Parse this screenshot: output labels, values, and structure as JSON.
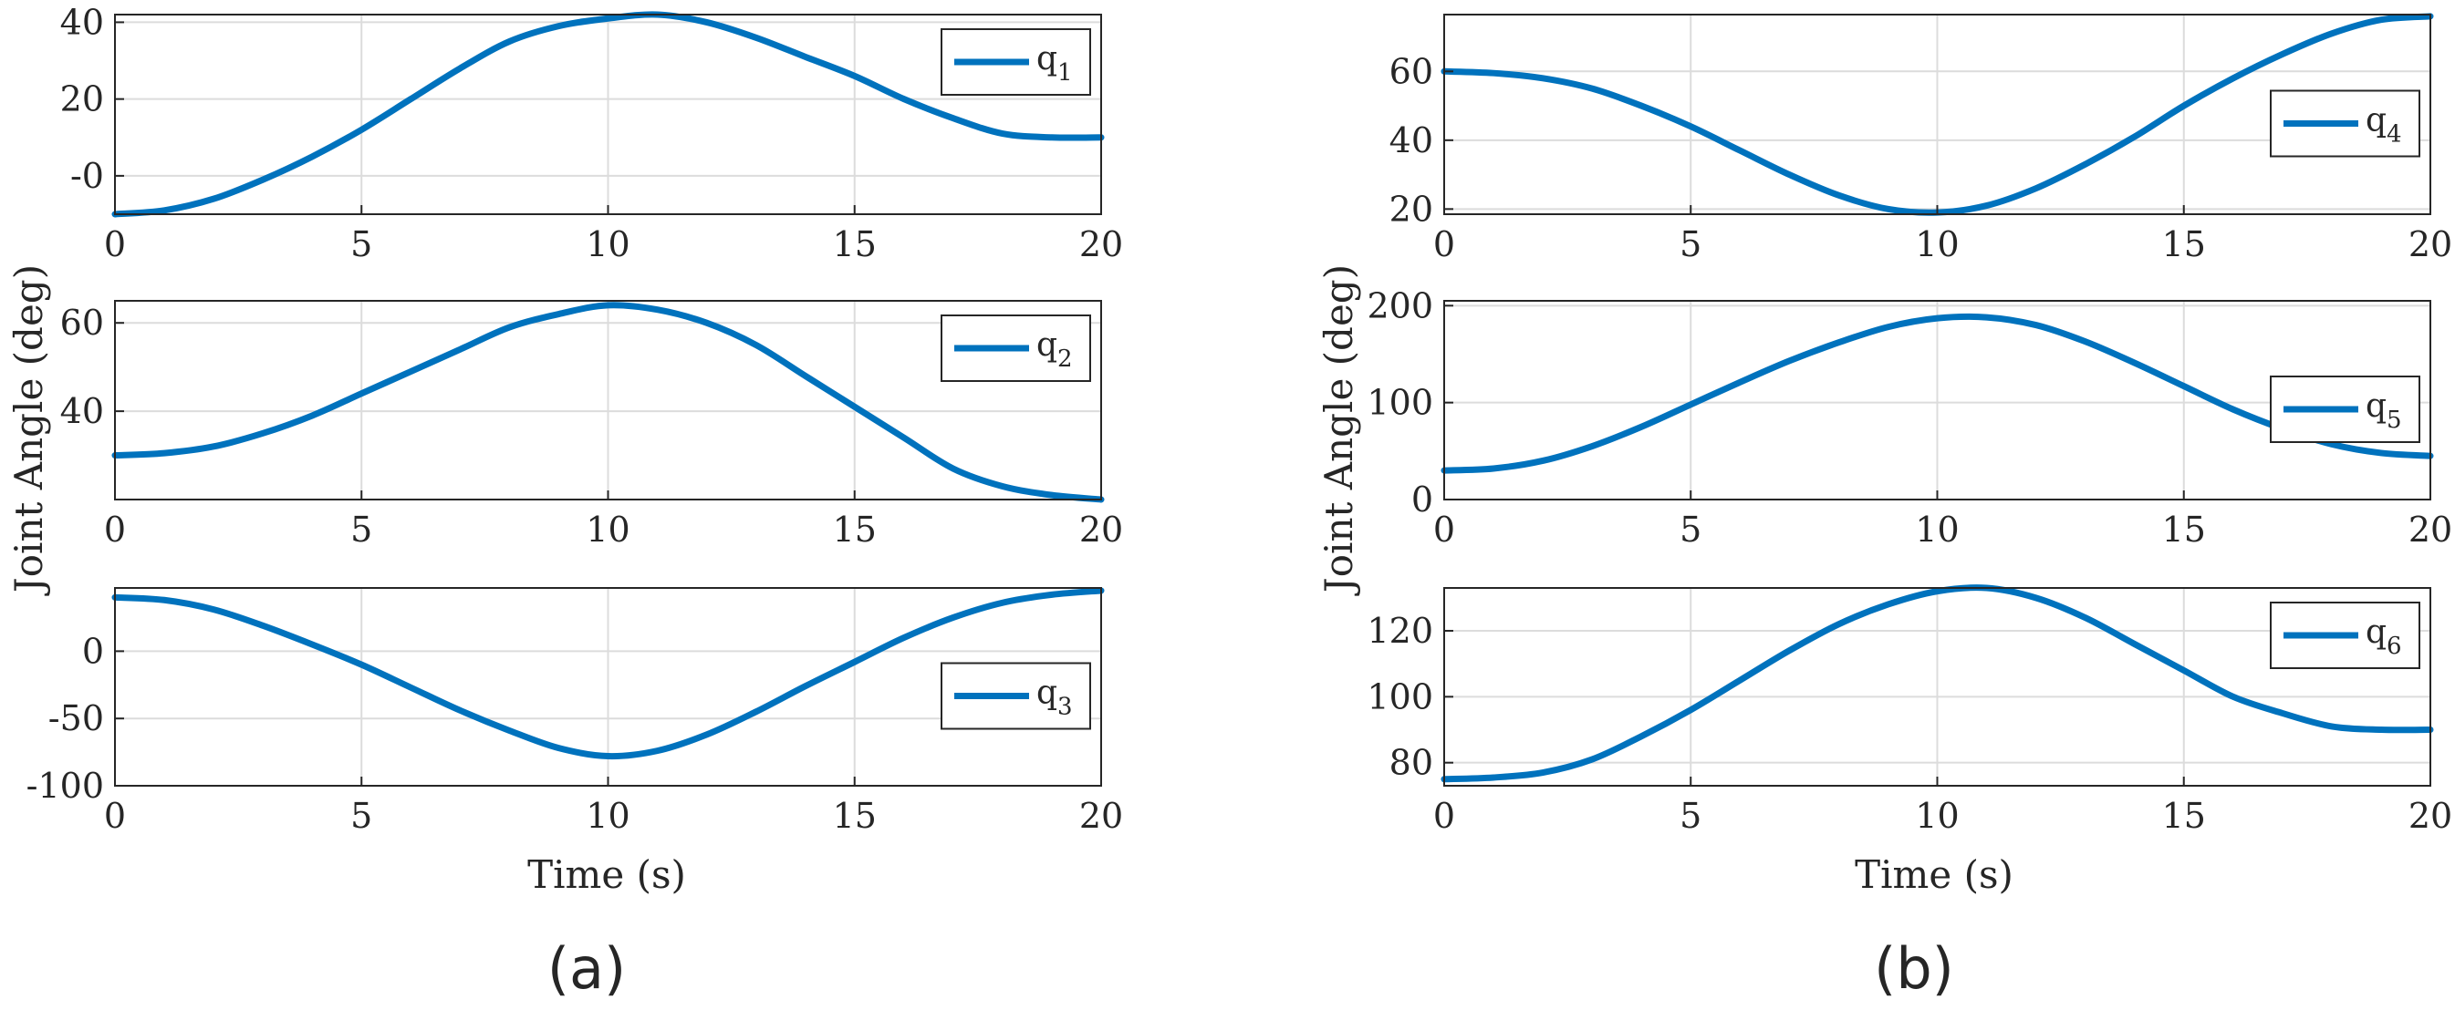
{
  "panels": [
    {
      "label": "(a)",
      "ylabel": "Joint Angle (deg)",
      "xlabel": "Time (s)"
    },
    {
      "label": "(b)",
      "ylabel": "Joint Angle (deg)",
      "xlabel": "Time (s)"
    }
  ],
  "chart_data": [
    {
      "type": "line",
      "panel": "a",
      "series": [
        {
          "name": "q1",
          "legend_base": "q",
          "legend_sub": "1",
          "color": "#0072BD",
          "x": [
            0,
            1,
            2,
            3,
            4,
            5,
            6,
            7,
            8,
            9,
            10,
            11,
            12,
            13,
            14,
            15,
            16,
            17,
            18,
            19,
            20
          ],
          "y": [
            -10,
            -9,
            -6,
            -1,
            5,
            12,
            20,
            28,
            35,
            39,
            41,
            42,
            40,
            36,
            31,
            26,
            20,
            15,
            11,
            10,
            10
          ]
        }
      ],
      "xlim": [
        0,
        20
      ],
      "ylim": [
        -10,
        42
      ],
      "xticks": [
        "0",
        "5",
        "10",
        "15",
        "20"
      ],
      "xtick_values": [
        0,
        5,
        10,
        15,
        20
      ],
      "yticks": [
        "-0",
        "20",
        "40"
      ],
      "ytick_values": [
        0,
        20,
        40
      ],
      "grid": true,
      "legend_position": "top-right"
    },
    {
      "type": "line",
      "panel": "a",
      "series": [
        {
          "name": "q2",
          "legend_base": "q",
          "legend_sub": "2",
          "color": "#0072BD",
          "x": [
            0,
            1,
            2,
            3,
            4,
            5,
            6,
            7,
            8,
            9,
            10,
            11,
            12,
            13,
            14,
            15,
            16,
            17,
            18,
            19,
            20
          ],
          "y": [
            30,
            30.5,
            32,
            35,
            39,
            44,
            49,
            54,
            59,
            62,
            64,
            63,
            60,
            55,
            48,
            41,
            34,
            27,
            23,
            21,
            20
          ]
        }
      ],
      "xlim": [
        0,
        20
      ],
      "ylim": [
        20,
        65
      ],
      "xticks": [
        "0",
        "5",
        "10",
        "15",
        "20"
      ],
      "xtick_values": [
        0,
        5,
        10,
        15,
        20
      ],
      "yticks": [
        "40",
        "60"
      ],
      "ytick_values": [
        40,
        60
      ],
      "grid": true,
      "legend_position": "top-right"
    },
    {
      "type": "line",
      "panel": "a",
      "series": [
        {
          "name": "q3",
          "legend_base": "q",
          "legend_sub": "3",
          "color": "#0072BD",
          "x": [
            0,
            1,
            2,
            3,
            4,
            5,
            6,
            7,
            8,
            9,
            10,
            11,
            12,
            13,
            14,
            15,
            16,
            17,
            18,
            19,
            20
          ],
          "y": [
            40,
            38,
            31,
            19,
            5,
            -10,
            -27,
            -44,
            -59,
            -72,
            -78,
            -74,
            -62,
            -45,
            -26,
            -8,
            10,
            25,
            36,
            42,
            45
          ]
        }
      ],
      "xlim": [
        0,
        20
      ],
      "ylim": [
        -100,
        47
      ],
      "xticks": [
        "0",
        "5",
        "10",
        "15",
        "20"
      ],
      "xtick_values": [
        0,
        5,
        10,
        15,
        20
      ],
      "yticks": [
        "-100",
        "-50",
        "0"
      ],
      "ytick_values": [
        -100,
        -50,
        0
      ],
      "grid": true,
      "legend_position": "right"
    },
    {
      "type": "line",
      "panel": "b",
      "series": [
        {
          "name": "q4",
          "legend_base": "q",
          "legend_sub": "4",
          "color": "#0072BD",
          "x": [
            0,
            1,
            2,
            3,
            4,
            5,
            6,
            7,
            8,
            9,
            10,
            11,
            12,
            13,
            14,
            15,
            16,
            17,
            18,
            19,
            20
          ],
          "y": [
            60,
            59.5,
            58,
            55,
            50,
            44,
            37,
            30,
            24,
            20,
            19,
            21,
            26,
            33,
            41,
            50,
            58,
            65,
            71,
            75,
            76
          ]
        }
      ],
      "xlim": [
        0,
        20
      ],
      "ylim": [
        18.5,
        76.5
      ],
      "xticks": [
        "0",
        "5",
        "10",
        "15",
        "20"
      ],
      "xtick_values": [
        0,
        5,
        10,
        15,
        20
      ],
      "yticks": [
        "20",
        "40",
        "60"
      ],
      "ytick_values": [
        20,
        40,
        60
      ],
      "grid": true,
      "legend_position": "right"
    },
    {
      "type": "line",
      "panel": "b",
      "series": [
        {
          "name": "q5",
          "legend_base": "q",
          "legend_sub": "5",
          "color": "#0072BD",
          "x": [
            0,
            1,
            2,
            3,
            4,
            5,
            6,
            7,
            8,
            9,
            10,
            11,
            12,
            13,
            14,
            15,
            16,
            17,
            18,
            19,
            20
          ],
          "y": [
            30,
            32,
            40,
            55,
            75,
            98,
            121,
            143,
            162,
            178,
            187,
            188,
            180,
            163,
            141,
            117,
            93,
            73,
            57,
            48,
            45
          ]
        }
      ],
      "xlim": [
        0,
        20
      ],
      "ylim": [
        0,
        205
      ],
      "xticks": [
        "0",
        "5",
        "10",
        "15",
        "20"
      ],
      "xtick_values": [
        0,
        5,
        10,
        15,
        20
      ],
      "yticks": [
        "0",
        "100",
        "200"
      ],
      "ytick_values": [
        0,
        100,
        200
      ],
      "grid": true,
      "legend_position": "right"
    },
    {
      "type": "line",
      "panel": "b",
      "series": [
        {
          "name": "q6",
          "legend_base": "q",
          "legend_sub": "6",
          "color": "#0072BD",
          "x": [
            0,
            1,
            2,
            3,
            4,
            5,
            6,
            7,
            8,
            9,
            10,
            11,
            12,
            13,
            14,
            15,
            16,
            17,
            18,
            19,
            20
          ],
          "y": [
            75,
            75.5,
            77,
            81,
            88,
            96,
            105,
            114,
            122,
            128,
            132,
            133,
            130,
            124,
            116,
            108,
            100,
            95,
            91,
            90,
            90
          ]
        }
      ],
      "xlim": [
        0,
        20
      ],
      "ylim": [
        73,
        133
      ],
      "xticks": [
        "0",
        "5",
        "10",
        "15",
        "20"
      ],
      "xtick_values": [
        0,
        5,
        10,
        15,
        20
      ],
      "yticks": [
        "80",
        "100",
        "120"
      ],
      "ytick_values": [
        80,
        100,
        120
      ],
      "grid": true,
      "legend_position": "top-right"
    }
  ]
}
